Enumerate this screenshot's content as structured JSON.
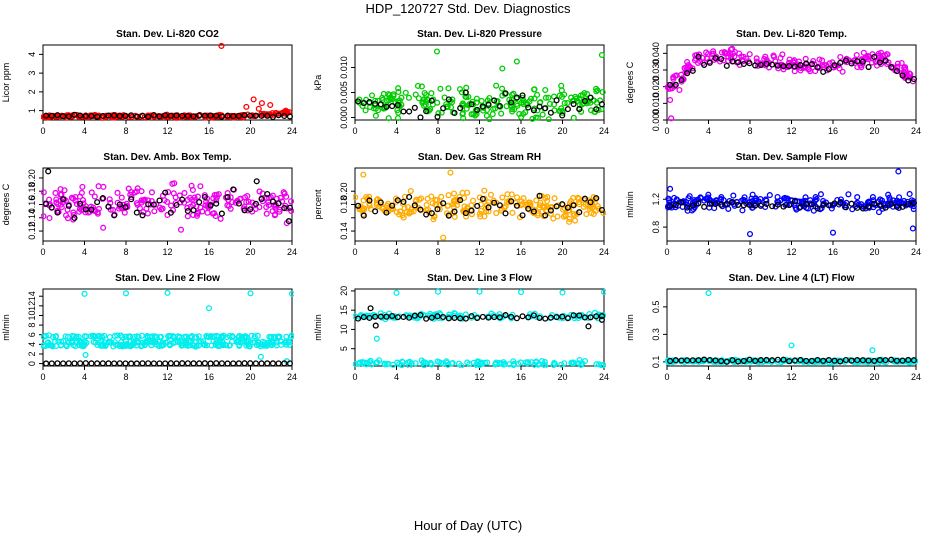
{
  "figure": {
    "title": "HDP_120727  Std. Dev. Diagnostics",
    "xlabel": "Hour of Day (UTC)"
  },
  "chart_data": [
    {
      "type": "scatter",
      "title": "Stan. Dev. Li-820 CO2",
      "ylabel": "Licor ppm",
      "xlim": [
        0,
        24
      ],
      "ylim": [
        0.5,
        4.5
      ],
      "xticks": [
        0,
        4,
        8,
        12,
        16,
        20,
        24
      ],
      "yticks": [
        1,
        2,
        3,
        4
      ],
      "ytick_labels": [
        "1",
        "2",
        "3",
        "4"
      ],
      "series": [
        {
          "name": "colored",
          "color": "#ff0000",
          "base": 0.7,
          "spread": 0.06,
          "outliers": [
            [
              17.2,
              4.45
            ],
            [
              19.6,
              1.2
            ],
            [
              20.3,
              1.6
            ],
            [
              21.1,
              1.4
            ],
            [
              21.9,
              1.3
            ],
            [
              20.8,
              1.1
            ],
            [
              23.4,
              1.0
            ]
          ]
        },
        {
          "name": "black",
          "color": "#000000",
          "base": 0.72,
          "spread": 0.05,
          "outliers": []
        }
      ]
    },
    {
      "type": "scatter",
      "title": "Stan. Dev. Li-820 Pressure",
      "ylabel": "kPa",
      "xlim": [
        0,
        24
      ],
      "ylim": [
        -0.0005,
        0.0145
      ],
      "xticks": [
        0,
        4,
        8,
        12,
        16,
        20,
        24
      ],
      "yticks": [
        0.0,
        0.005,
        0.01
      ],
      "ytick_labels": [
        "0.000",
        "0.005",
        "0.010"
      ],
      "series": [
        {
          "name": "colored",
          "color": "#00cc00",
          "base": 0.003,
          "spread": 0.0025,
          "outliers": [
            [
              7.9,
              0.0132
            ],
            [
              15.6,
              0.0112
            ],
            [
              23.8,
              0.0125
            ],
            [
              14.2,
              0.0098
            ]
          ]
        },
        {
          "name": "black",
          "color": "#000000",
          "base": 0.0025,
          "spread": 0.002,
          "outliers": []
        }
      ]
    },
    {
      "type": "scatter",
      "title": "Stan. Dev. Li-820 Temp.",
      "ylabel": "degrees C",
      "xlim": [
        0,
        24
      ],
      "ylim": [
        0.0,
        0.045
      ],
      "xticks": [
        0,
        4,
        8,
        12,
        16,
        20,
        24
      ],
      "yticks": [
        0.0,
        0.01,
        0.02,
        0.03,
        0.04
      ],
      "ytick_labels": [
        "0.000",
        "0.010",
        "0.020",
        "0.030",
        "0.040"
      ],
      "series": [
        {
          "name": "colored",
          "color": "#ee00ee",
          "base": 0.035,
          "spread": 0.004,
          "outliers": [
            [
              0.4,
              0.001
            ],
            [
              0.3,
              0.012
            ],
            [
              1.2,
              0.018
            ]
          ]
        },
        {
          "name": "black",
          "color": "#000000",
          "base": 0.034,
          "spread": 0.003,
          "outliers": []
        }
      ]
    },
    {
      "type": "scatter",
      "title": "Stan. Dev. Amb. Box Temp.",
      "ylabel": "degrees C",
      "xlim": [
        0,
        24
      ],
      "ylim": [
        0.105,
        0.215
      ],
      "xticks": [
        0,
        4,
        8,
        12,
        16,
        20,
        24
      ],
      "yticks": [
        0.12,
        0.14,
        0.16,
        0.18,
        0.2
      ],
      "ytick_labels": [
        "0.12",
        "0.14",
        "0.16",
        "0.18",
        "0.20"
      ],
      "series": [
        {
          "name": "colored",
          "color": "#ee00ee",
          "base": 0.162,
          "spread": 0.02,
          "outliers": [
            [
              5.8,
              0.125
            ],
            [
              13.3,
              0.122
            ],
            [
              23.5,
              0.132
            ]
          ]
        },
        {
          "name": "black",
          "color": "#000000",
          "base": 0.16,
          "spread": 0.015,
          "outliers": [
            [
              0.5,
              0.21
            ],
            [
              20.6,
              0.195
            ],
            [
              23.7,
              0.135
            ]
          ]
        }
      ]
    },
    {
      "type": "scatter",
      "title": "Stan. Dev. Gas Stream RH",
      "ylabel": "percent",
      "xlim": [
        0,
        24
      ],
      "ylim": [
        0.125,
        0.235
      ],
      "xticks": [
        0,
        4,
        8,
        12,
        16,
        20,
        24
      ],
      "yticks": [
        0.14,
        0.16,
        0.18,
        0.2
      ],
      "ytick_labels": [
        "0.14",
        "",
        "0.18",
        "0.20"
      ],
      "series": [
        {
          "name": "colored",
          "color": "#ffaa00",
          "base": 0.178,
          "spread": 0.018,
          "outliers": [
            [
              0.8,
              0.225
            ],
            [
              8.5,
              0.13
            ],
            [
              9.2,
              0.228
            ]
          ]
        },
        {
          "name": "black",
          "color": "#000000",
          "base": 0.176,
          "spread": 0.015,
          "outliers": []
        }
      ]
    },
    {
      "type": "scatter",
      "title": "Stan. Dev. Sample Flow",
      "ylabel": "ml/min",
      "xlim": [
        0,
        24
      ],
      "ylim": [
        0.6,
        1.65
      ],
      "xticks": [
        0,
        4,
        8,
        12,
        16,
        20,
        24
      ],
      "yticks": [
        0.8,
        1.2
      ],
      "ytick_labels": [
        "0.8",
        "1.2"
      ],
      "series": [
        {
          "name": "colored",
          "color": "#0000ff",
          "base": 1.15,
          "spread": 0.09,
          "outliers": [
            [
              8.0,
              0.7
            ],
            [
              16.0,
              0.72
            ],
            [
              22.3,
              1.6
            ],
            [
              23.7,
              0.78
            ],
            [
              0.3,
              1.35
            ]
          ]
        },
        {
          "name": "black",
          "color": "#000000",
          "base": 1.12,
          "spread": 0.04,
          "outliers": []
        }
      ]
    },
    {
      "type": "scatter",
      "title": "Stan. Dev. Line 2 Flow",
      "ylabel": "ml/min",
      "xlim": [
        0,
        24
      ],
      "ylim": [
        -0.5,
        15.5
      ],
      "xticks": [
        0,
        4,
        8,
        12,
        16,
        20,
        24
      ],
      "yticks": [
        0,
        2,
        4,
        6,
        8,
        10,
        12,
        14
      ],
      "ytick_labels": [
        "0",
        "2",
        "4",
        "6",
        "8",
        "10",
        "12",
        "14"
      ],
      "series": [
        {
          "name": "colored",
          "color": "#00eeee",
          "bands": [
            3.8,
            4.5,
            5.6
          ],
          "spread": 0.25,
          "outliers": [
            [
              4.0,
              14.5
            ],
            [
              8.0,
              14.6
            ],
            [
              12.0,
              14.7
            ],
            [
              16.0,
              11.5
            ],
            [
              20.0,
              14.6
            ],
            [
              24.0,
              14.5
            ],
            [
              4.1,
              1.8
            ],
            [
              21.0,
              1.4
            ],
            [
              23.5,
              0.5
            ]
          ]
        },
        {
          "name": "black",
          "color": "#000000",
          "base": 0.05,
          "spread": 0.03,
          "outliers": []
        }
      ]
    },
    {
      "type": "scatter",
      "title": "Stan. Dev. Line 3 Flow",
      "ylabel": "ml/min",
      "xlim": [
        0,
        24
      ],
      "ylim": [
        0.5,
        20.5
      ],
      "xticks": [
        0,
        4,
        8,
        12,
        16,
        20,
        24
      ],
      "yticks": [
        5,
        10,
        15,
        20
      ],
      "ytick_labels": [
        "5",
        "10",
        "15",
        "20"
      ],
      "series": [
        {
          "name": "colored",
          "color": "#00eeee",
          "bands": [
            1.2,
            13.5
          ],
          "spread": 0.6,
          "outliers": [
            [
              4.0,
              19.5
            ],
            [
              8.0,
              19.8
            ],
            [
              12.0,
              19.8
            ],
            [
              16.0,
              19.7
            ],
            [
              20.0,
              19.6
            ],
            [
              24.0,
              19.7
            ],
            [
              2.1,
              7.6
            ]
          ]
        },
        {
          "name": "black",
          "color": "#000000",
          "base": 13.2,
          "spread": 0.5,
          "outliers": [
            [
              1.5,
              15.5
            ],
            [
              2.0,
              11.0
            ],
            [
              22.5,
              10.8
            ],
            [
              23.8,
              12.5
            ]
          ]
        }
      ]
    },
    {
      "type": "scatter",
      "title": "Stan. Dev. Line 4 (LT) Flow",
      "ylabel": "ml/min",
      "xlim": [
        0,
        24
      ],
      "ylim": [
        0.07,
        0.63
      ],
      "xticks": [
        0,
        4,
        8,
        12,
        16,
        20,
        24
      ],
      "yticks": [
        0.1,
        0.3,
        0.5
      ],
      "ytick_labels": [
        "0.1",
        "0.3",
        "0.5"
      ],
      "series": [
        {
          "name": "colored",
          "color": "#00eeee",
          "base": 0.105,
          "spread": 0.008,
          "outliers": [
            [
              4.0,
              0.6
            ],
            [
              12.0,
              0.22
            ],
            [
              19.8,
              0.185
            ]
          ]
        },
        {
          "name": "black",
          "color": "#000000",
          "base": 0.11,
          "spread": 0.007,
          "outliers": []
        }
      ]
    }
  ]
}
